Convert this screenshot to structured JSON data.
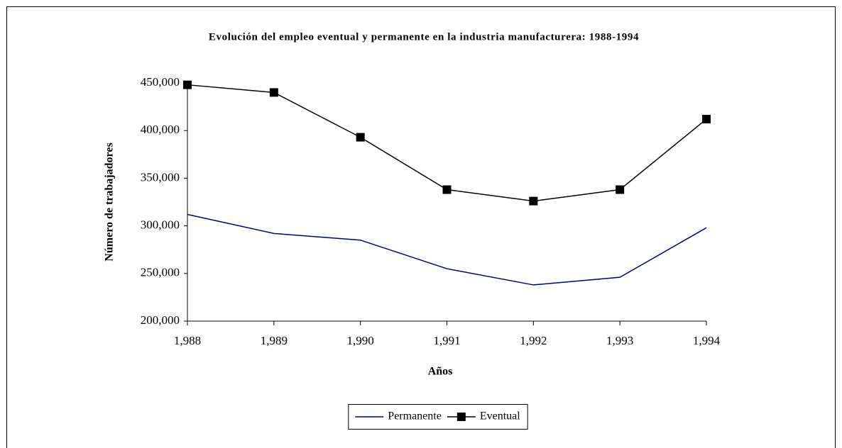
{
  "chart_data": {
    "type": "line",
    "title": "Evolución del empleo eventual y permanente en la industria manufacturera: 1988-1994",
    "x_label": "Años",
    "y_label": "Número de trabajadores",
    "x": [
      1988,
      1989,
      1990,
      1991,
      1992,
      1993,
      1994
    ],
    "series": [
      {
        "name": "Permanente",
        "color": "#000080",
        "values": [
          312000,
          292000,
          285000,
          255000,
          238000,
          246000,
          298000
        ]
      },
      {
        "name": "Eventual",
        "color": "#000000",
        "marker": "square",
        "values": [
          448000,
          440000,
          393000,
          338000,
          326000,
          338000,
          412000
        ]
      }
    ],
    "xlim": [
      1988,
      1994
    ],
    "xticks": [
      {
        "value": 1988,
        "label": "1,988"
      },
      {
        "value": 1989,
        "label": "1,989"
      },
      {
        "value": 1990,
        "label": "1,990"
      },
      {
        "value": 1991,
        "label": "1,991"
      },
      {
        "value": 1992,
        "label": "1,992"
      },
      {
        "value": 1993,
        "label": "1,993"
      },
      {
        "value": 1994,
        "label": "1,994"
      }
    ],
    "ylim": [
      200000,
      450000
    ],
    "yticks": [
      {
        "value": 200000,
        "label": "200,000"
      },
      {
        "value": 250000,
        "label": "250,000"
      },
      {
        "value": 300000,
        "label": "300,000"
      },
      {
        "value": 350000,
        "label": "350,000"
      },
      {
        "value": 400000,
        "label": "400,000"
      },
      {
        "value": 450000,
        "label": "450,000"
      }
    ],
    "grid": false,
    "legend": "bottom"
  }
}
